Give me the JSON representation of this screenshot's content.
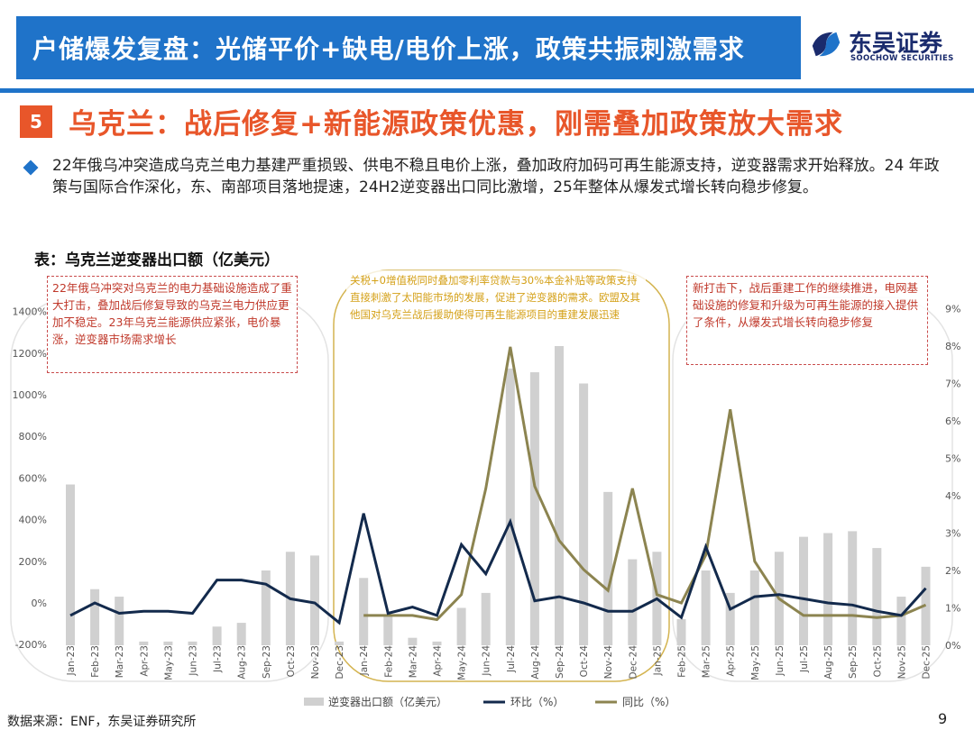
{
  "header": {
    "title": "户储爆发复盘：光储平价+缺电/电价上涨，政策共振刺激需求"
  },
  "logo": {
    "name_cn": "东吴证券",
    "name_en": "SOOCHOW SECURITIES"
  },
  "section": {
    "number": "5",
    "title": "乌克兰：战后修复+新能源政策优惠，刚需叠加政策放大需求"
  },
  "bullet_text": "22年俄乌冲突造成乌克兰电力基建严重损毁、供电不稳且电价上涨，叠加政府加码可再生能源支持，逆变器需求开始释放。24 年政策与国际合作深化，东、南部项目落地提速，24H2逆变器出口同比激增，25年整体从爆发式增长转向稳步修复。",
  "table_title": "表：乌克兰逆变器出口额（亿美元）",
  "notes": {
    "n1": "22年俄乌冲突对乌克兰的电力基础设施造成了重大打击，叠加战后修复导致的乌克兰电力供应更加不稳定。23年乌克兰能源供应紧张，电价暴涨，逆变器市场需求增长",
    "n2": "关税+0增值税同时叠加零利率贷款与30%本金补贴等政策支持直接刺激了太阳能市场的发展，促进了逆变器的需求。欧盟及其他国对乌克兰战后援助使得可再生能源项目的重建发展迅速",
    "n3": "新打击下，战后重建工作的继续推进，电网基础设施的修复和升级为可再生能源的接入提供了条件，从爆发式增长转向稳步修复"
  },
  "colors": {
    "bar": "#d0d0d0",
    "mom": "#132a4c",
    "yoy": "#8c8450",
    "header": "#1f73c9",
    "accent": "#e8562a"
  },
  "source": "数据来源：ENF，东吴证券研究所",
  "page_number": "9",
  "chart_data": {
    "type": "bar",
    "title": "",
    "categories": [
      "Jan-23",
      "Feb-23",
      "Mar-23",
      "Apr-23",
      "May-23",
      "Jun-23",
      "Jul-23",
      "Aug-23",
      "Sep-23",
      "Oct-23",
      "Nov-23",
      "Dec-23",
      "Jan-24",
      "Feb-24",
      "Mar-24",
      "Apr-24",
      "May-24",
      "Jun-24",
      "Jul-24",
      "Aug-24",
      "Sep-24",
      "Oct-24",
      "Nov-24",
      "Dec-24",
      "Jan-25",
      "Feb-25",
      "Mar-25",
      "Apr-25",
      "May-25",
      "Jun-25",
      "Jul-25",
      "Aug-25",
      "Sep-25",
      "Oct-25",
      "Nov-25",
      "Dec-25"
    ],
    "series": [
      {
        "name": "逆变器出口额（亿美元）",
        "type": "bar",
        "axis": "right",
        "values": [
          4.3,
          1.5,
          1.3,
          0.1,
          0.1,
          0.1,
          0.5,
          0.6,
          2.0,
          2.5,
          2.4,
          0.1,
          1.8,
          0.8,
          0.2,
          0.1,
          1.0,
          1.4,
          7.4,
          7.3,
          8.0,
          7.0,
          4.1,
          2.3,
          2.5,
          0.7,
          2.0,
          1.4,
          2.0,
          2.5,
          2.9,
          3.0,
          3.05,
          2.6,
          1.3,
          2.1
        ]
      },
      {
        "name": "环比（%）",
        "type": "line",
        "axis": "left",
        "values": [
          -60,
          0,
          -50,
          -40,
          -40,
          -50,
          110,
          110,
          90,
          20,
          0,
          -95,
          430,
          -50,
          -20,
          -60,
          280,
          140,
          390,
          10,
          30,
          0,
          -40,
          -40,
          20,
          -70,
          270,
          -30,
          30,
          40,
          20,
          0,
          -10,
          -40,
          -60,
          70
        ]
      },
      {
        "name": "同比（%）",
        "type": "line",
        "axis": "left",
        "values": [
          null,
          null,
          null,
          null,
          null,
          null,
          null,
          null,
          null,
          null,
          null,
          null,
          -60,
          -60,
          -60,
          -80,
          40,
          550,
          1230,
          560,
          300,
          160,
          60,
          550,
          40,
          0,
          230,
          930,
          200,
          20,
          -60,
          -60,
          -60,
          -70,
          -60,
          -10
        ]
      }
    ],
    "y_left": {
      "ticks": [
        "-200%",
        "0%",
        "200%",
        "400%",
        "600%",
        "800%",
        "1000%",
        "1200%",
        "1400%"
      ],
      "range": [
        -200,
        1400
      ]
    },
    "y_right": {
      "ticks": [
        "0%",
        "1%",
        "2%",
        "3%",
        "4%",
        "5%",
        "6%",
        "7%",
        "8%",
        "9%"
      ],
      "range": [
        0,
        9
      ]
    },
    "legend": {
      "position": "bottom",
      "items": [
        "逆变器出口额（亿美元）",
        "环比（%）",
        "同比（%）"
      ]
    }
  }
}
